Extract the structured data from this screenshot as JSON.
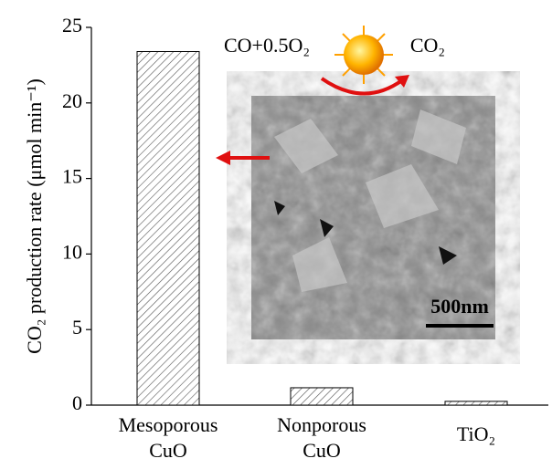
{
  "chart_data": {
    "type": "bar",
    "y_label": "CO₂ production rate (μmol min⁻¹)",
    "categories": [
      "Mesoporous CuO",
      "Nonporous CuO",
      "TiO₂"
    ],
    "values": [
      23.4,
      1.15,
      0.25
    ],
    "color": "#555555",
    "ylim": [
      0,
      25
    ],
    "yticks": [
      0,
      5,
      10,
      15,
      20,
      25
    ],
    "annotations": {
      "reactant": "CO+0.5O₂",
      "product": "CO₂",
      "scale_bar": "500nm"
    }
  }
}
